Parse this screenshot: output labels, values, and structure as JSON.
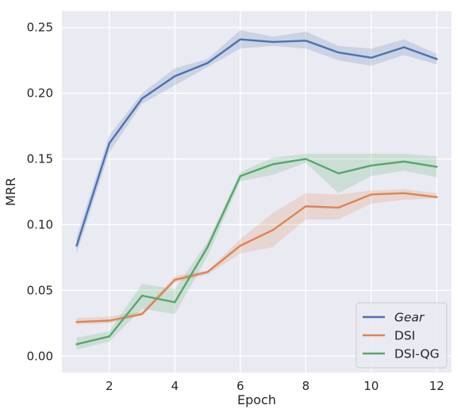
{
  "chart_data": {
    "type": "line",
    "xlabel": "Epoch",
    "ylabel": "MRR",
    "xlim": [
      0.55,
      12.45
    ],
    "ylim": [
      -0.0125,
      0.2625
    ],
    "xticks": [
      2,
      4,
      6,
      8,
      10,
      12
    ],
    "xtick_labels": [
      "2",
      "4",
      "6",
      "8",
      "10",
      "12"
    ],
    "yticks": [
      0.0,
      0.05,
      0.1,
      0.15,
      0.2,
      0.25
    ],
    "ytick_labels": [
      "0.00",
      "0.05",
      "0.10",
      "0.15",
      "0.20",
      "0.25"
    ],
    "grid": true,
    "legend_position": "lower-right",
    "x": [
      1,
      2,
      3,
      4,
      5,
      6,
      7,
      8,
      9,
      10,
      11,
      12
    ],
    "series": [
      {
        "name": "Gear",
        "italic": true,
        "color": "#4c72b0",
        "values": [
          0.084,
          0.162,
          0.196,
          0.213,
          0.223,
          0.241,
          0.239,
          0.24,
          0.231,
          0.227,
          0.235,
          0.226
        ],
        "lower": [
          0.078,
          0.155,
          0.192,
          0.206,
          0.22,
          0.234,
          0.236,
          0.234,
          0.225,
          0.221,
          0.229,
          0.222
        ],
        "upper": [
          0.091,
          0.168,
          0.2,
          0.219,
          0.226,
          0.248,
          0.243,
          0.247,
          0.236,
          0.234,
          0.241,
          0.23
        ]
      },
      {
        "name": "DSI",
        "italic": false,
        "color": "#dd8452",
        "values": [
          0.026,
          0.027,
          0.032,
          0.058,
          0.064,
          0.084,
          0.096,
          0.114,
          0.113,
          0.123,
          0.124,
          0.121
        ],
        "lower": [
          0.024,
          0.025,
          0.031,
          0.056,
          0.062,
          0.078,
          0.083,
          0.104,
          0.104,
          0.116,
          0.119,
          0.12
        ],
        "upper": [
          0.029,
          0.03,
          0.034,
          0.061,
          0.065,
          0.089,
          0.109,
          0.124,
          0.123,
          0.126,
          0.127,
          0.124
        ]
      },
      {
        "name": "DSI-QG",
        "italic": false,
        "color": "#55a868",
        "values": [
          0.009,
          0.015,
          0.046,
          0.041,
          0.083,
          0.137,
          0.146,
          0.15,
          0.139,
          0.145,
          0.148,
          0.144
        ],
        "lower": [
          0.005,
          0.011,
          0.036,
          0.032,
          0.076,
          0.133,
          0.138,
          0.147,
          0.124,
          0.137,
          0.141,
          0.136
        ],
        "upper": [
          0.014,
          0.019,
          0.055,
          0.051,
          0.087,
          0.14,
          0.151,
          0.154,
          0.154,
          0.154,
          0.154,
          0.152
        ]
      }
    ]
  }
}
